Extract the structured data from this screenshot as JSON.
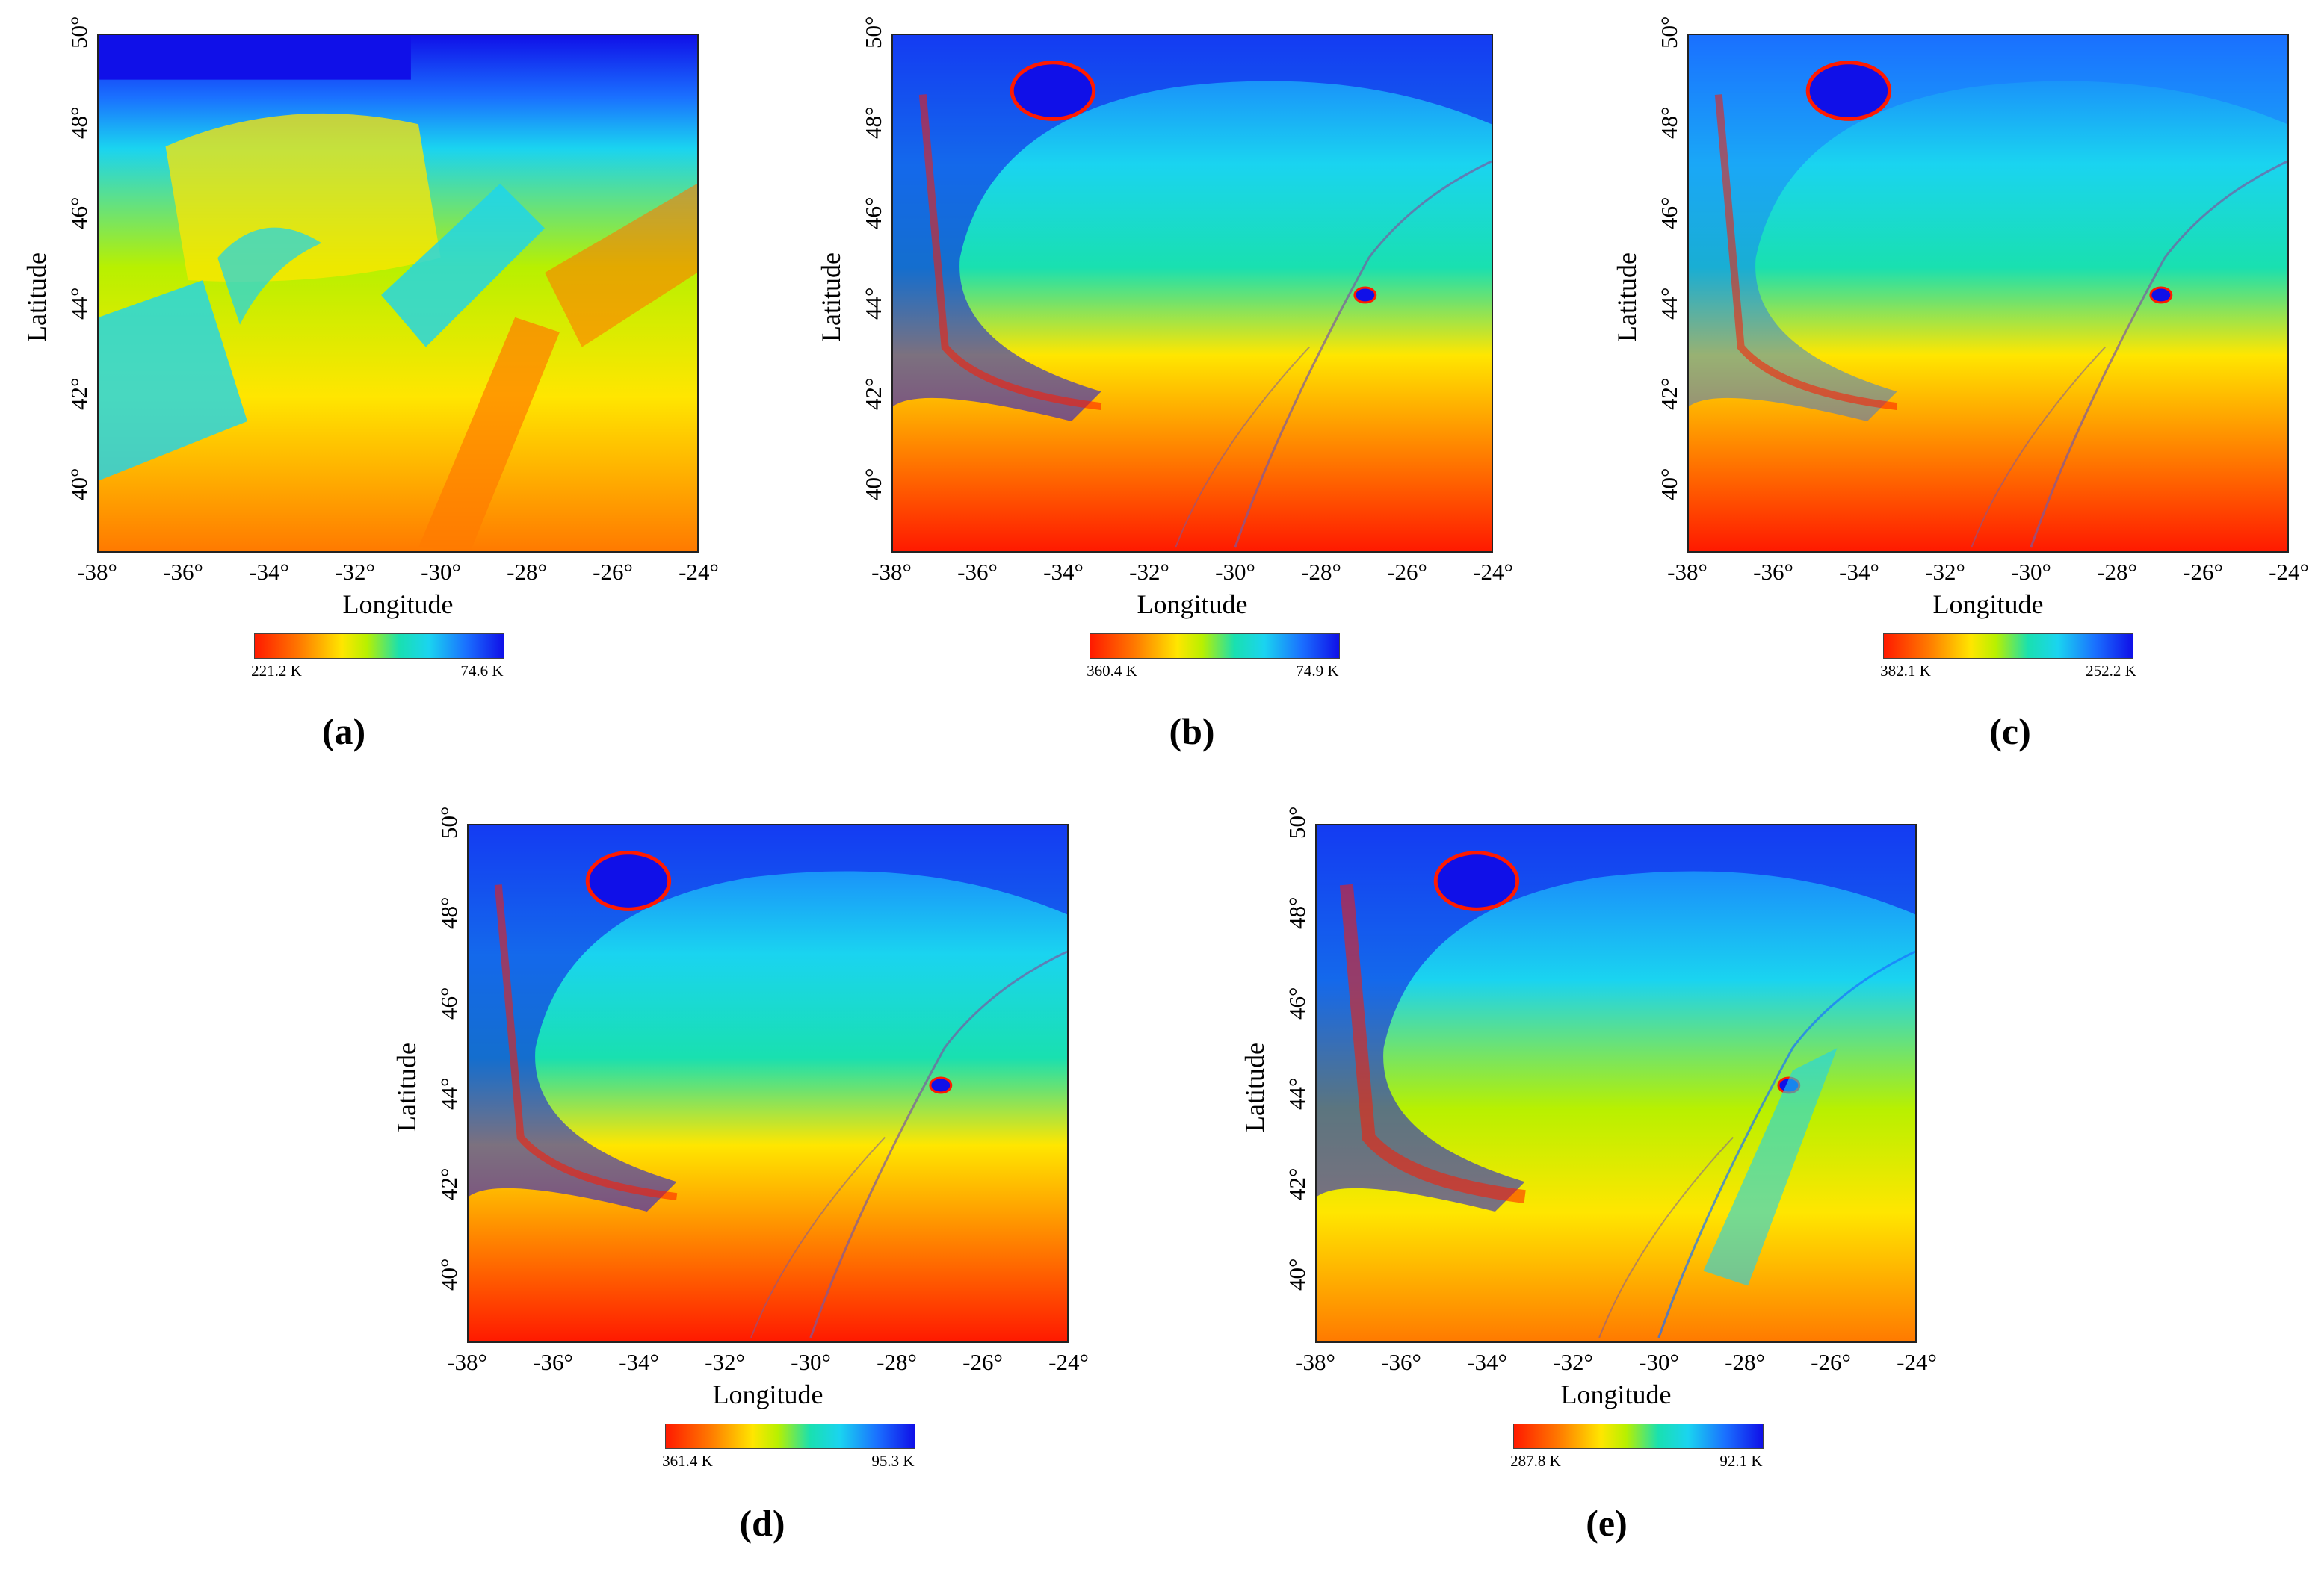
{
  "axes": {
    "xlabel": "Longitude",
    "ylabel": "Latitude",
    "x_ticks": [
      "-38°",
      "-36°",
      "-34°",
      "-32°",
      "-30°",
      "-28°",
      "-26°",
      "-24°"
    ],
    "y_ticks": [
      "40°",
      "42°",
      "44°",
      "46°",
      "48°",
      "50°"
    ]
  },
  "panels": [
    {
      "id": "a",
      "label": "(a)",
      "cbar_min": "221.2 K",
      "cbar_max": "74.6 K"
    },
    {
      "id": "b",
      "label": "(b)",
      "cbar_min": "360.4 K",
      "cbar_max": "74.9 K"
    },
    {
      "id": "c",
      "label": "(c)",
      "cbar_min": "382.1 K",
      "cbar_max": "252.2 K"
    },
    {
      "id": "d",
      "label": "(d)",
      "cbar_min": "361.4 K",
      "cbar_max": "95.3 K"
    },
    {
      "id": "e",
      "label": "(e)",
      "cbar_min": "287.8 K",
      "cbar_max": "92.1 K"
    }
  ],
  "colormap": [
    "#ff1a00",
    "#ff7a00",
    "#ffe600",
    "#b8f000",
    "#19e0b0",
    "#1ad4f0",
    "#1a70ff",
    "#1010e8"
  ]
}
